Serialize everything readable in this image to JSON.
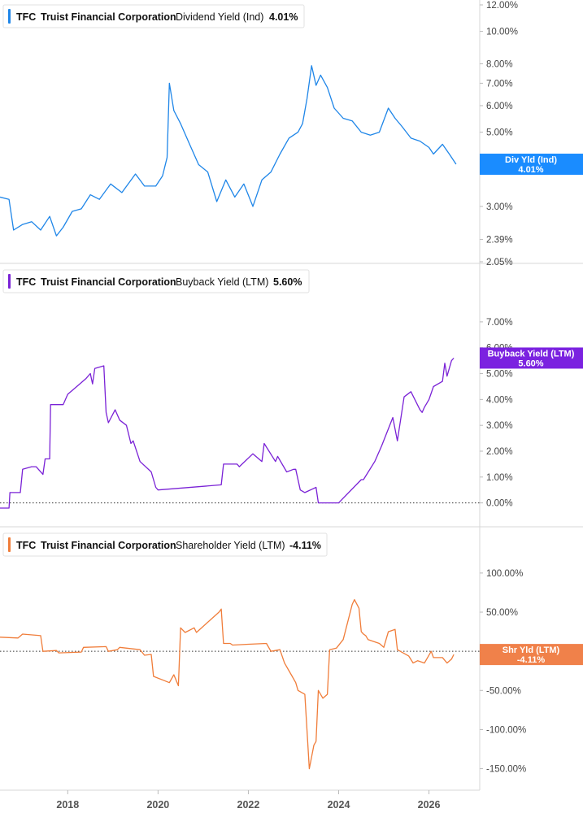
{
  "colors": {
    "dividend": "#1f86e8",
    "buyback": "#7a22d6",
    "shareholder": "#f07d3a",
    "tag_dividend": "#1a8cff",
    "tag_buyback": "#7b22e0",
    "tag_shareholder": "#f0814a",
    "axis_text": "#444444",
    "divider": "#d7d7d7"
  },
  "chart_data": [
    {
      "type": "line",
      "ticker": "TFC",
      "company": "Truist Financial Corporation",
      "metric": "Dividend Yield (Ind)",
      "value_label": "4.01%",
      "y_scale": "log",
      "ylim": [
        2.05,
        12.0
      ],
      "y_ticks": [
        "12.00%",
        "10.00%",
        "8.00%",
        "7.00%",
        "6.00%",
        "5.00%",
        "4.00%",
        "3.00%",
        "2.39%",
        "2.05%"
      ],
      "y_tick_values": [
        12.0,
        10.0,
        8.0,
        7.0,
        6.0,
        5.0,
        4.0,
        3.0,
        2.39,
        2.05
      ],
      "xlim": [
        2016.5,
        2026.8
      ],
      "current_tag": {
        "label": "Div Yld (Ind)",
        "value": "4.01%"
      },
      "series": [
        {
          "name": "Dividend Yield (Ind)",
          "x": [
            2016.5,
            2016.7,
            2016.8,
            2017.0,
            2017.2,
            2017.4,
            2017.6,
            2017.75,
            2017.9,
            2018.1,
            2018.3,
            2018.5,
            2018.7,
            2018.95,
            2019.2,
            2019.5,
            2019.7,
            2019.95,
            2020.1,
            2020.2,
            2020.25,
            2020.35,
            2020.5,
            2020.7,
            2020.9,
            2021.1,
            2021.3,
            2021.5,
            2021.7,
            2021.9,
            2022.1,
            2022.3,
            2022.5,
            2022.7,
            2022.9,
            2023.1,
            2023.2,
            2023.3,
            2023.4,
            2023.5,
            2023.6,
            2023.75,
            2023.9,
            2024.1,
            2024.3,
            2024.5,
            2024.7,
            2024.9,
            2025.1,
            2025.25,
            2025.4,
            2025.6,
            2025.8,
            2026.0,
            2026.1,
            2026.3,
            2026.45,
            2026.6
          ],
          "values": [
            3.2,
            3.15,
            2.55,
            2.65,
            2.7,
            2.55,
            2.8,
            2.45,
            2.6,
            2.9,
            2.95,
            3.25,
            3.15,
            3.5,
            3.3,
            3.75,
            3.45,
            3.45,
            3.7,
            4.2,
            7.0,
            5.8,
            5.3,
            4.6,
            4.0,
            3.8,
            3.1,
            3.6,
            3.2,
            3.5,
            3.0,
            3.6,
            3.8,
            4.3,
            4.8,
            5.0,
            5.3,
            6.3,
            7.9,
            6.9,
            7.4,
            6.8,
            5.9,
            5.5,
            5.4,
            5.0,
            4.9,
            5.0,
            5.9,
            5.5,
            5.2,
            4.8,
            4.7,
            4.5,
            4.3,
            4.6,
            4.3,
            4.01
          ]
        }
      ]
    },
    {
      "type": "line",
      "ticker": "TFC",
      "company": "Truist Financial Corporation",
      "metric": "Buyback Yield (LTM)",
      "value_label": "5.60%",
      "ylim": [
        -0.2,
        7.5
      ],
      "y_ticks": [
        "7.00%",
        "6.00%",
        "5.00%",
        "4.00%",
        "3.00%",
        "2.00%",
        "1.00%",
        "0.00%"
      ],
      "y_tick_values": [
        7.0,
        6.0,
        5.0,
        4.0,
        3.0,
        2.0,
        1.0,
        0.0
      ],
      "xlim": [
        2016.5,
        2026.8
      ],
      "current_tag": {
        "label": "Buyback Yield (LTM)",
        "value": "5.60%"
      },
      "series": [
        {
          "name": "Buyback Yield (LTM)",
          "x": [
            2016.5,
            2016.7,
            2016.72,
            2016.95,
            2017.0,
            2017.2,
            2017.3,
            2017.45,
            2017.5,
            2017.6,
            2017.62,
            2017.9,
            2018.0,
            2018.2,
            2018.4,
            2018.5,
            2018.55,
            2018.6,
            2018.8,
            2018.85,
            2018.9,
            2019.05,
            2019.15,
            2019.3,
            2019.4,
            2019.45,
            2019.6,
            2019.85,
            2019.95,
            2020.0,
            2021.4,
            2021.45,
            2021.75,
            2021.8,
            2022.1,
            2022.3,
            2022.35,
            2022.6,
            2022.65,
            2022.85,
            2023.0,
            2023.05,
            2023.15,
            2023.25,
            2023.5,
            2023.55,
            2024.0,
            2024.5,
            2024.55,
            2024.8,
            2024.95,
            2025.2,
            2025.3,
            2025.45,
            2025.6,
            2025.8,
            2025.85,
            2025.9,
            2026.0,
            2026.1,
            2026.3,
            2026.35,
            2026.4,
            2026.5,
            2026.55
          ],
          "values": [
            -0.2,
            -0.2,
            0.4,
            0.4,
            1.3,
            1.4,
            1.4,
            1.1,
            1.7,
            1.7,
            3.8,
            3.8,
            4.2,
            4.5,
            4.8,
            5.0,
            4.6,
            5.2,
            5.3,
            3.5,
            3.1,
            3.6,
            3.2,
            3.0,
            2.3,
            2.4,
            1.6,
            1.2,
            0.6,
            0.5,
            0.7,
            1.5,
            1.5,
            1.4,
            1.9,
            1.6,
            2.3,
            1.6,
            1.8,
            1.2,
            1.3,
            1.3,
            0.5,
            0.4,
            0.6,
            0.0,
            0.0,
            0.9,
            0.9,
            1.6,
            2.2,
            3.3,
            2.4,
            4.1,
            4.3,
            3.6,
            3.5,
            3.7,
            4.0,
            4.5,
            4.7,
            5.4,
            4.9,
            5.5,
            5.6
          ]
        }
      ]
    },
    {
      "type": "line",
      "ticker": "TFC",
      "company": "Truist Financial Corporation",
      "metric": "Shareholder Yield (LTM)",
      "value_label": "-4.11%",
      "ylim": [
        -165,
        130
      ],
      "y_ticks": [
        "100.00%",
        "50.00%",
        "0.00%",
        "-50.00%",
        "-100.00%",
        "-150.00%"
      ],
      "y_tick_values": [
        100,
        50,
        0,
        -50,
        -100,
        -150
      ],
      "xlim": [
        2016.5,
        2026.8
      ],
      "x_ticks": [
        "2018",
        "2020",
        "2022",
        "2024",
        "2026"
      ],
      "x_tick_values": [
        2018,
        2020,
        2022,
        2024,
        2026
      ],
      "current_tag": {
        "label": "Shr Yld (LTM)",
        "value": "-4.11%"
      },
      "series": [
        {
          "name": "Shareholder Yield (LTM)",
          "x": [
            2016.5,
            2016.9,
            2017.0,
            2017.4,
            2017.45,
            2017.75,
            2017.8,
            2018.3,
            2018.35,
            2018.85,
            2018.9,
            2019.1,
            2019.15,
            2019.6,
            2019.7,
            2019.85,
            2019.9,
            2020.25,
            2020.35,
            2020.45,
            2020.5,
            2020.6,
            2020.8,
            2020.85,
            2021.35,
            2021.4,
            2021.45,
            2021.6,
            2021.65,
            2022.0,
            2022.4,
            2022.5,
            2022.7,
            2022.8,
            2022.95,
            2023.05,
            2023.1,
            2023.25,
            2023.35,
            2023.45,
            2023.5,
            2023.55,
            2023.65,
            2023.75,
            2023.8,
            2023.95,
            2024.1,
            2024.3,
            2024.35,
            2024.45,
            2024.5,
            2024.55,
            2024.6,
            2024.65,
            2024.9,
            2025.0,
            2025.1,
            2025.25,
            2025.3,
            2025.55,
            2025.65,
            2025.75,
            2025.9,
            2026.05,
            2026.1,
            2026.3,
            2026.4,
            2026.5,
            2026.55
          ],
          "values": [
            18,
            17,
            22,
            20,
            0,
            1,
            -2,
            -1,
            5,
            6,
            0,
            2,
            5,
            2,
            -5,
            -4,
            -32,
            -40,
            -30,
            -44,
            30,
            24,
            30,
            24,
            50,
            54,
            10,
            10,
            8,
            9,
            10,
            0,
            2,
            -15,
            -30,
            -40,
            -50,
            -55,
            -150,
            -120,
            -115,
            -50,
            -60,
            -55,
            2,
            4,
            15,
            60,
            66,
            55,
            25,
            22,
            20,
            15,
            10,
            5,
            25,
            28,
            2,
            -6,
            -15,
            -12,
            -15,
            0,
            -8,
            -8,
            -15,
            -10,
            -4.11
          ]
        }
      ]
    }
  ]
}
